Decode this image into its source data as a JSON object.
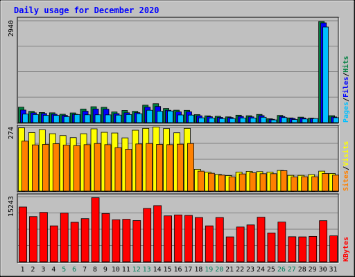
{
  "chart_data": {
    "type": "bar",
    "title": "Daily usage for December 2020",
    "days": [
      "1",
      "2",
      "3",
      "4",
      "5",
      "6",
      "7",
      "8",
      "9",
      "10",
      "11",
      "12",
      "13",
      "14",
      "15",
      "16",
      "17",
      "18",
      "19",
      "20",
      "21",
      "22",
      "23",
      "24",
      "25",
      "26",
      "27",
      "28",
      "29",
      "30",
      "31"
    ],
    "weekend_days": [
      "5",
      "6",
      "12",
      "13",
      "19",
      "20",
      "26",
      "27"
    ],
    "colors": {
      "background": "#c0c0c0",
      "title": "#0000ff",
      "hits": "#008040",
      "files": "#0000ff",
      "pages": "#00c0ff",
      "visits": "#ffff00",
      "sites": "#ff8000",
      "kbytes": "#ff0000",
      "weekend_label": "#00805c"
    },
    "panels": [
      {
        "id": "hits-files-pages",
        "ymax_label": "2940",
        "ymax": 2940,
        "legend": [
          "Pages",
          "/",
          "Files",
          "/",
          "Hits"
        ],
        "series": [
          {
            "name": "Hits",
            "values": [
              445,
              324,
              291,
              282,
              241,
              279,
              391,
              458,
              441,
              307,
              350,
              325,
              503,
              545,
              408,
              358,
              354,
              230,
              195,
              182,
              165,
              213,
              198,
              235,
              111,
              206,
              135,
              157,
              129,
              2920,
              199
            ]
          },
          {
            "name": "Files",
            "values": [
              362,
              282,
              262,
              241,
              208,
              241,
              329,
              391,
              387,
              259,
              283,
              287,
              446,
              466,
              356,
              309,
              311,
              196,
              170,
              150,
              146,
              178,
              165,
              200,
              95,
              175,
              120,
              133,
              116,
              2880,
              163
            ]
          },
          {
            "name": "Pages",
            "values": [
              245,
              233,
              208,
              208,
              172,
              231,
              225,
              225,
              223,
              216,
              232,
              255,
              356,
              327,
              335,
              220,
              216,
              137,
              131,
              114,
              116,
              133,
              132,
              154,
              78,
              146,
              89,
              104,
              116,
              2760,
              142
            ]
          }
        ]
      },
      {
        "id": "visits-sites",
        "ymax_label": "274",
        "ymax": 274,
        "legend": [
          "Sites",
          "/",
          "Visits"
        ],
        "series": [
          {
            "name": "Visits",
            "values": [
              272,
              252,
              264,
              247,
              239,
              230,
              247,
              268,
              253,
              250,
              229,
              262,
              270,
              276,
              269,
              251,
              270,
              94,
              82,
              72,
              67,
              82,
              85,
              84,
              82,
              89,
              68,
              68,
              71,
              86,
              76
            ]
          },
          {
            "name": "Sites",
            "values": [
              215,
              199,
              201,
              204,
              198,
              196,
              200,
              205,
              200,
              187,
              180,
              203,
              205,
              201,
              200,
              202,
              205,
              86,
              77,
              69,
              61,
              74,
              79,
              75,
              75,
              88,
              61,
              62,
              62,
              76,
              69
            ]
          }
        ]
      },
      {
        "id": "kbytes",
        "ymax_label": "15243",
        "ymax": 15243,
        "legend": [
          "KBytes"
        ],
        "series": [
          {
            "name": "KBytes",
            "values": [
              12820,
              10580,
              11560,
              8410,
              11400,
              9250,
              10100,
              15000,
              11300,
              9840,
              9950,
              9650,
              12490,
              13150,
              10750,
              10970,
              10860,
              10360,
              8410,
              10360,
              5830,
              8140,
              8630,
              10440,
              6750,
              9300,
              5860,
              5830,
              5940,
              9620,
              6080
            ]
          }
        ]
      }
    ]
  }
}
